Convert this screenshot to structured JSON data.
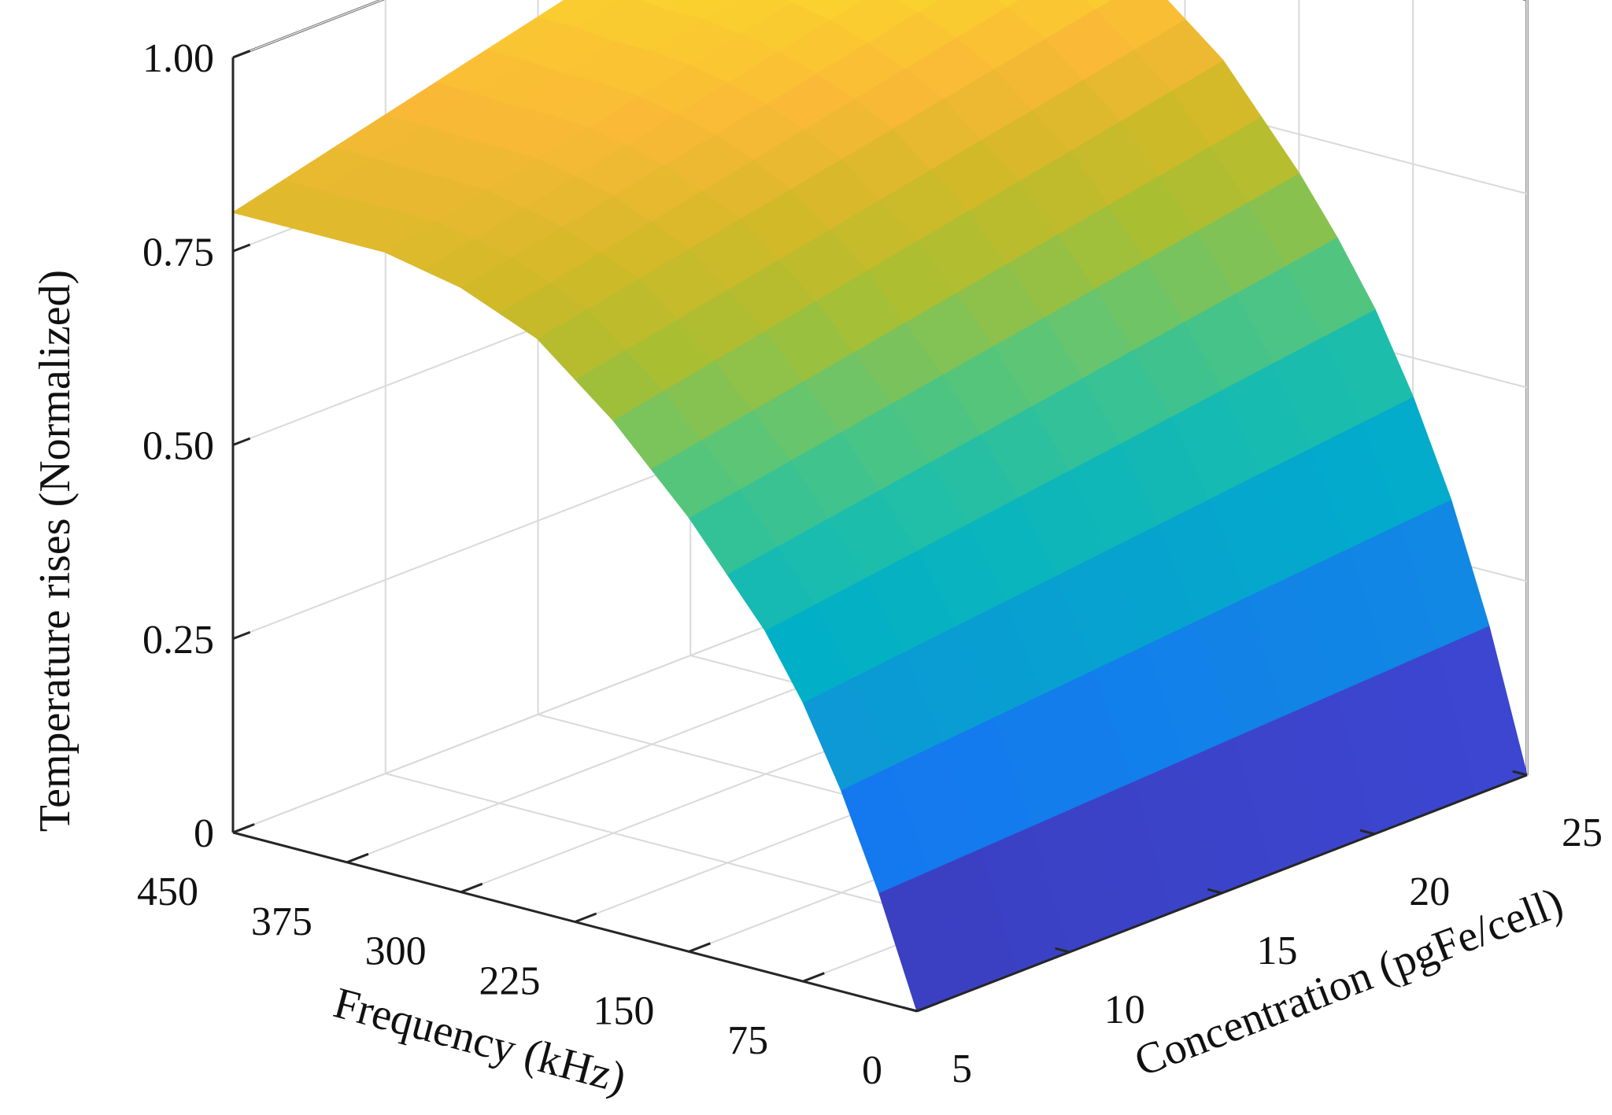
{
  "chart_data": {
    "type": "surface",
    "title": "",
    "xlabel": "Frequency (kHz)",
    "ylabel": "Concentration (pgFe/cell)",
    "zlabel": "Temperature rises (Normalized)",
    "x_ticks": [
      "0",
      "75",
      "150",
      "225",
      "300",
      "375",
      "450"
    ],
    "y_ticks": [
      "5",
      "10",
      "15",
      "20",
      "25"
    ],
    "z_ticks": [
      "0",
      "0.25",
      "0.50",
      "0.75",
      "1.00"
    ],
    "x_range": [
      0,
      450
    ],
    "y_range": [
      5,
      25
    ],
    "z_range": [
      0,
      1
    ],
    "grid": true,
    "colormap": "parula",
    "frequency_values": [
      0,
      25,
      50,
      75,
      100,
      125,
      150,
      175,
      200,
      225,
      250,
      275,
      300,
      325,
      350,
      375,
      400,
      425,
      450
    ],
    "concentration_values": [
      5,
      25
    ],
    "surface_z": [
      [
        0.0,
        0.0
      ],
      [
        0.14,
        0.18
      ],
      [
        0.26,
        0.33
      ],
      [
        0.36,
        0.45
      ],
      [
        0.44,
        0.55
      ],
      [
        0.5,
        0.63
      ],
      [
        0.56,
        0.7
      ],
      [
        0.61,
        0.76
      ],
      [
        0.66,
        0.82
      ],
      [
        0.7,
        0.86
      ],
      [
        0.74,
        0.9
      ],
      [
        0.76,
        0.93
      ],
      [
        0.78,
        0.95
      ],
      [
        0.79,
        0.97
      ],
      [
        0.8,
        0.98
      ],
      [
        0.8,
        0.99
      ],
      [
        0.8,
        0.99
      ],
      [
        0.8,
        1.0
      ],
      [
        0.8,
        1.0
      ]
    ]
  }
}
